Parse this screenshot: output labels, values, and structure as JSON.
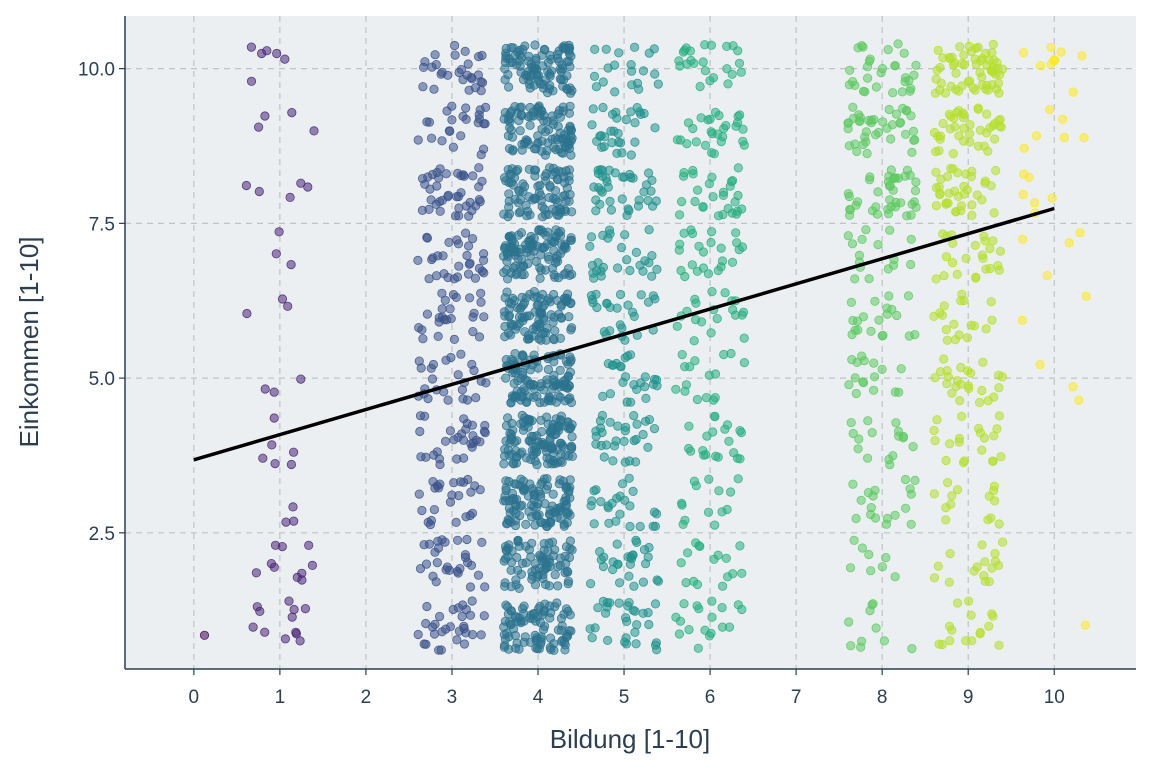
{
  "chart_data": {
    "type": "scatter",
    "title": "",
    "xlabel": "Bildung [1-10]",
    "ylabel": "Einkommen [1-10]",
    "xlim": [
      -0.8,
      10.95
    ],
    "ylim": [
      0.3,
      10.85
    ],
    "x_ticks": [
      "0",
      "1",
      "2",
      "3",
      "4",
      "5",
      "6",
      "7",
      "8",
      "9",
      "10"
    ],
    "y_ticks": [
      "2.5",
      "5.0",
      "7.5",
      "10.0"
    ],
    "y_tick_values": [
      2.5,
      5.0,
      7.5,
      10.0
    ],
    "grid": true,
    "legend": "none",
    "jitter": true,
    "colormap": "viridis",
    "colors": {
      "panel_background": "#ebeff1",
      "grid": "#bfc3c6",
      "axis": "#2c3e50",
      "regression_line": "#000000"
    },
    "point_counts_by_x": {
      "0": [
        1,
        0,
        0,
        0,
        0,
        0,
        0,
        0,
        0,
        0
      ],
      "1": [
        12,
        10,
        3,
        6,
        3,
        3,
        3,
        5,
        4,
        6
      ],
      "3": [
        30,
        28,
        25,
        30,
        25,
        26,
        30,
        40,
        24,
        28
      ],
      "4": [
        90,
        80,
        110,
        120,
        115,
        100,
        110,
        90,
        100,
        100
      ],
      "5": [
        30,
        28,
        25,
        30,
        25,
        26,
        28,
        38,
        30,
        20
      ],
      "6": [
        18,
        16,
        14,
        20,
        16,
        20,
        24,
        28,
        28,
        24
      ],
      "8": [
        10,
        8,
        18,
        16,
        16,
        20,
        16,
        40,
        40,
        30
      ],
      "9": [
        16,
        16,
        14,
        20,
        24,
        18,
        24,
        36,
        40,
        60
      ],
      "10": [
        1,
        0,
        0,
        0,
        3,
        2,
        4,
        6,
        6,
        10
      ]
    },
    "regression": {
      "x0": 0,
      "y0": 3.68,
      "x1": 10,
      "y1": 7.74
    }
  }
}
